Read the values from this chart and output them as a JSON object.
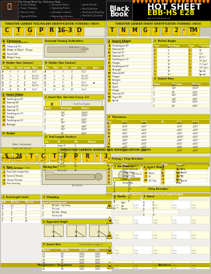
{
  "bg_color": "#c8c4b8",
  "header_bg": "#1a1a1a",
  "yellow": "#f0cc00",
  "yellow_light": "#f5e060",
  "gold": "#b8a800",
  "white": "#ffffff",
  "off_white": "#f0eeea",
  "light_yellow_row": "#fffde0",
  "section_hdr": "#d4cc00",
  "tbl_hdr": "#b8aa00",
  "blue_row": "#dde8f8",
  "gray_row": "#e8e8e8",
  "dark": "#1a1a1a",
  "med_gray": "#888888",
  "border": "#999966"
}
